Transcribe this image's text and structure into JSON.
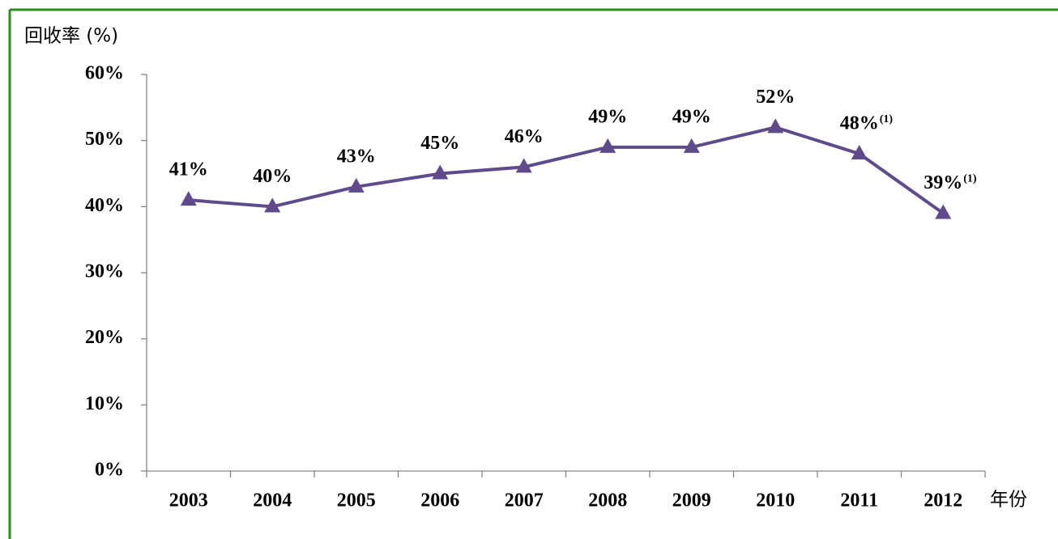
{
  "chart_data": {
    "type": "line",
    "y_axis_title": "回收率 (%)",
    "x_axis_title": "年份",
    "categories": [
      "2003",
      "2004",
      "2005",
      "2006",
      "2007",
      "2008",
      "2009",
      "2010",
      "2011",
      "2012"
    ],
    "values": [
      41,
      40,
      43,
      45,
      46,
      49,
      49,
      52,
      48,
      39
    ],
    "value_labels": [
      "41%",
      "40%",
      "43%",
      "45%",
      "46%",
      "49%",
      "49%",
      "52%",
      "48%",
      "39%"
    ],
    "value_label_notes": [
      null,
      null,
      null,
      null,
      null,
      null,
      null,
      null,
      "(1)",
      "(1)"
    ],
    "color": "#5f4b8b",
    "marker": "triangle",
    "ylim": [
      0,
      60
    ],
    "yticks": [
      {
        "value": 0,
        "label": "0%"
      },
      {
        "value": 10,
        "label": "10%"
      },
      {
        "value": 20,
        "label": "20%"
      },
      {
        "value": 30,
        "label": "30%"
      },
      {
        "value": 40,
        "label": "40%"
      },
      {
        "value": 50,
        "label": "50%"
      },
      {
        "value": 60,
        "label": "60%"
      }
    ],
    "grid": false
  }
}
